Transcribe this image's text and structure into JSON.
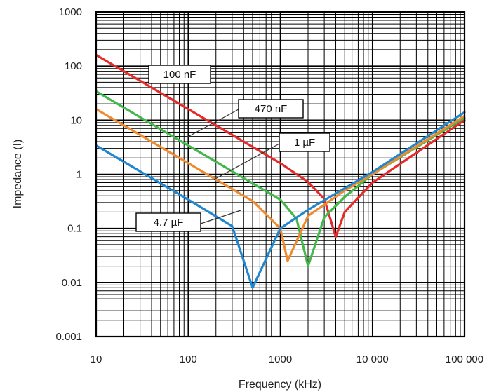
{
  "chart_data": {
    "type": "line",
    "xlabel": "Frequency (kHz)",
    "ylabel": "Impedance (I)",
    "x_scale": "log",
    "y_scale": "log",
    "xlim": [
      10,
      100000
    ],
    "ylim": [
      0.001,
      1000
    ],
    "grid": true,
    "x_ticks": [
      "10",
      "100",
      "1000",
      "10 000",
      "100 000"
    ],
    "y_ticks": [
      "1000",
      "100",
      "10",
      "1",
      "0.1",
      "0.01",
      "0.001"
    ],
    "series": [
      {
        "name": "100 nF",
        "color": "#e52a2a",
        "x": [
          10,
          100,
          1000,
          2000,
          3000,
          4000,
          5000,
          10000,
          100000
        ],
        "y": [
          160,
          16,
          1.6,
          0.72,
          0.35,
          0.07,
          0.2,
          0.7,
          10
        ]
      },
      {
        "name": "470 nF",
        "color": "#43b74a",
        "x": [
          10,
          100,
          1000,
          1500,
          2000,
          3000,
          5000,
          10000,
          100000
        ],
        "y": [
          34,
          3.4,
          0.34,
          0.15,
          0.02,
          0.16,
          0.38,
          1.0,
          11
        ]
      },
      {
        "name": "1 µF",
        "color": "#f08a2e",
        "x": [
          10,
          100,
          500,
          1000,
          1200,
          2000,
          5000,
          10000,
          100000
        ],
        "y": [
          16,
          1.6,
          0.32,
          0.1,
          0.025,
          0.17,
          0.5,
          1.0,
          12
        ]
      },
      {
        "name": "4.7 µF",
        "color": "#1f86d0",
        "x": [
          10,
          100,
          300,
          500,
          1000,
          2000,
          5000,
          10000,
          100000
        ],
        "y": [
          3.4,
          0.34,
          0.11,
          0.008,
          0.1,
          0.22,
          0.55,
          1.1,
          14
        ]
      }
    ]
  }
}
